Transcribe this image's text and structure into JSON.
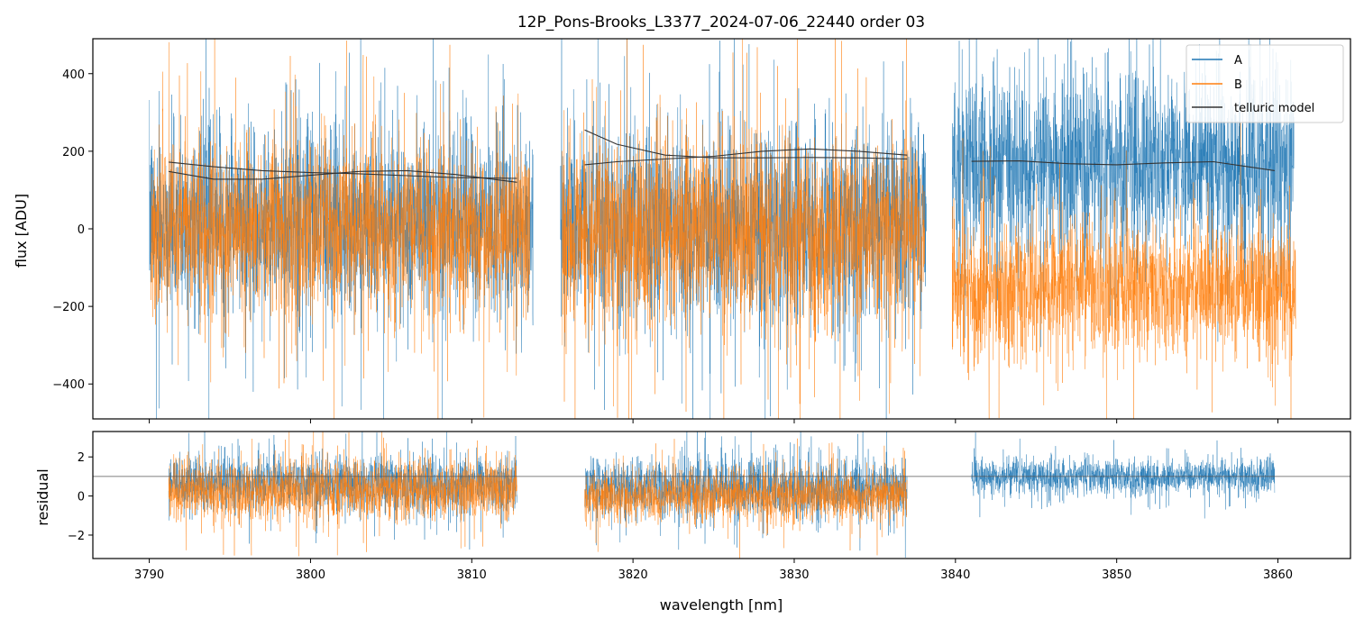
{
  "chart_data": [
    {
      "type": "line",
      "panel": "top",
      "title": "12P_Pons-Brooks_L3377_2024-07-06_22440  order 03",
      "xlabel": "",
      "ylabel": "flux [ADU]",
      "xlim": [
        3786.5,
        3864.5
      ],
      "ylim": [
        -490,
        490
      ],
      "xticks": [
        3790,
        3800,
        3810,
        3820,
        3830,
        3840,
        3850,
        3860
      ],
      "yticks": [
        -400,
        -200,
        0,
        200,
        400
      ],
      "ytick_labels": [
        "−400",
        "−200",
        "0",
        "200",
        "400"
      ],
      "legend_position": "top-right",
      "legend": [
        "A",
        "B",
        "telluric model"
      ],
      "series": [
        {
          "name": "A",
          "color": "#1f77b4",
          "segments": [
            {
              "x_start": 3790.0,
              "x_end": 3813.8,
              "center": 20,
              "spread": 150
            },
            {
              "x_start": 3815.5,
              "x_end": 3838.2,
              "center": 10,
              "spread": 170
            },
            {
              "x_start": 3839.8,
              "x_end": 3861.0,
              "center": 170,
              "spread": 150
            }
          ]
        },
        {
          "name": "B",
          "color": "#ff7f0e",
          "segments": [
            {
              "x_start": 3790.1,
              "x_end": 3813.6,
              "center": 0,
              "spread": 150
            },
            {
              "x_start": 3815.6,
              "x_end": 3838.1,
              "center": -10,
              "spread": 160
            },
            {
              "x_start": 3839.8,
              "x_end": 3861.1,
              "center": -150,
              "spread": 110
            }
          ]
        },
        {
          "name": "telluric model",
          "color": "#333333",
          "curves": [
            {
              "x": [
                3791.2,
                3794,
                3797,
                3800,
                3803,
                3806,
                3809,
                3812.8
              ],
              "y": [
                172,
                160,
                150,
                145,
                142,
                137,
                132,
                130
              ]
            },
            {
              "x": [
                3791.2,
                3794,
                3797,
                3800,
                3803,
                3806,
                3809,
                3812.8
              ],
              "y": [
                148,
                128,
                128,
                138,
                148,
                150,
                140,
                120
              ]
            },
            {
              "x": [
                3817.0,
                3819,
                3822,
                3825,
                3828,
                3831,
                3834,
                3837.0
              ],
              "y": [
                255,
                218,
                190,
                183,
                183,
                184,
                183,
                180
              ]
            },
            {
              "x": [
                3817.0,
                3819,
                3822,
                3825,
                3828,
                3831,
                3834,
                3837.0
              ],
              "y": [
                165,
                173,
                180,
                187,
                200,
                206,
                200,
                190
              ]
            },
            {
              "x": [
                3841.0,
                3844,
                3847,
                3850,
                3853,
                3856,
                3859.8
              ],
              "y": [
                174,
                175,
                168,
                165,
                170,
                173,
                150
              ]
            }
          ]
        }
      ]
    },
    {
      "type": "line",
      "panel": "bottom",
      "xlabel": "wavelength [nm]",
      "ylabel": "residual",
      "xlim": [
        3786.5,
        3864.5
      ],
      "ylim": [
        -3.2,
        3.3
      ],
      "xticks": [
        3790,
        3800,
        3810,
        3820,
        3830,
        3840,
        3850,
        3860
      ],
      "yticks": [
        -2,
        0,
        2
      ],
      "ytick_labels": [
        "−2",
        "0",
        "2"
      ],
      "reference_line": 1.0,
      "series": [
        {
          "name": "A",
          "color": "#1f77b4",
          "segments": [
            {
              "x_start": 3791.2,
              "x_end": 3812.8,
              "center": 0.6,
              "spread": 0.9
            },
            {
              "x_start": 3817.0,
              "x_end": 3837.0,
              "center": 0.4,
              "spread": 1.0
            },
            {
              "x_start": 3841.0,
              "x_end": 3859.8,
              "center": 1.0,
              "spread": 0.6
            }
          ]
        },
        {
          "name": "B",
          "color": "#ff7f0e",
          "segments": [
            {
              "x_start": 3791.2,
              "x_end": 3812.8,
              "center": 0.3,
              "spread": 1.0
            },
            {
              "x_start": 3817.0,
              "x_end": 3837.0,
              "center": 0.0,
              "spread": 0.9
            }
          ]
        }
      ]
    }
  ]
}
